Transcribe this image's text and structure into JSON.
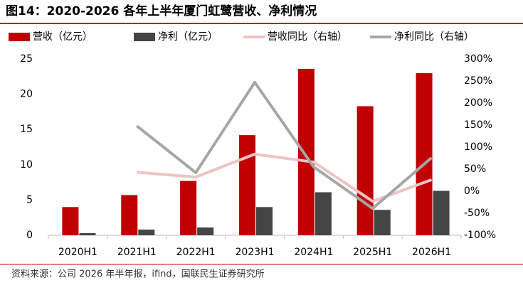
{
  "chart_data": {
    "type": "bar-line",
    "title": "图14：2020-2026 各年上半年厦门虹鹭营收、净利情况",
    "source": "资料来源：公司 2026 年半年报，ifind，国联民生证券研究所",
    "categories": [
      "2020H1",
      "2021H1",
      "2022H1",
      "2023H1",
      "2024H1",
      "2025H1",
      "2026H1"
    ],
    "series": [
      {
        "name": "营收（亿元）",
        "type": "bar",
        "color": "#c00000",
        "values": [
          4.0,
          5.7,
          7.7,
          14.2,
          23.6,
          18.3,
          23.0
        ]
      },
      {
        "name": "净利（亿元）",
        "type": "bar",
        "color": "#454545",
        "values": [
          0.3,
          0.8,
          1.1,
          4.0,
          6.1,
          3.6,
          6.3
        ]
      },
      {
        "name": "营收同比（右轴）",
        "type": "line",
        "axis": "y2",
        "color": "#efc3c3",
        "values": [
          null,
          43,
          32,
          84,
          66,
          -23,
          26
        ]
      },
      {
        "name": "净利同比（右轴）",
        "type": "line",
        "axis": "y2",
        "color": "#a6a6a6",
        "values": [
          null,
          148,
          42,
          247,
          55,
          -39,
          76
        ]
      }
    ],
    "ylim": [
      0,
      25
    ],
    "yticks": [
      0,
      5,
      10,
      15,
      20,
      25
    ],
    "y2lim": [
      -100,
      300
    ],
    "y2ticks": [
      {
        "value": -100,
        "label": "-100%"
      },
      {
        "value": -50,
        "label": "-50%"
      },
      {
        "value": 0,
        "label": "0%"
      },
      {
        "value": 50,
        "label": "50%"
      },
      {
        "value": 100,
        "label": "100%"
      },
      {
        "value": 150,
        "label": "150%"
      },
      {
        "value": 200,
        "label": "200%"
      },
      {
        "value": 250,
        "label": "250%"
      },
      {
        "value": 300,
        "label": "300%"
      }
    ]
  }
}
